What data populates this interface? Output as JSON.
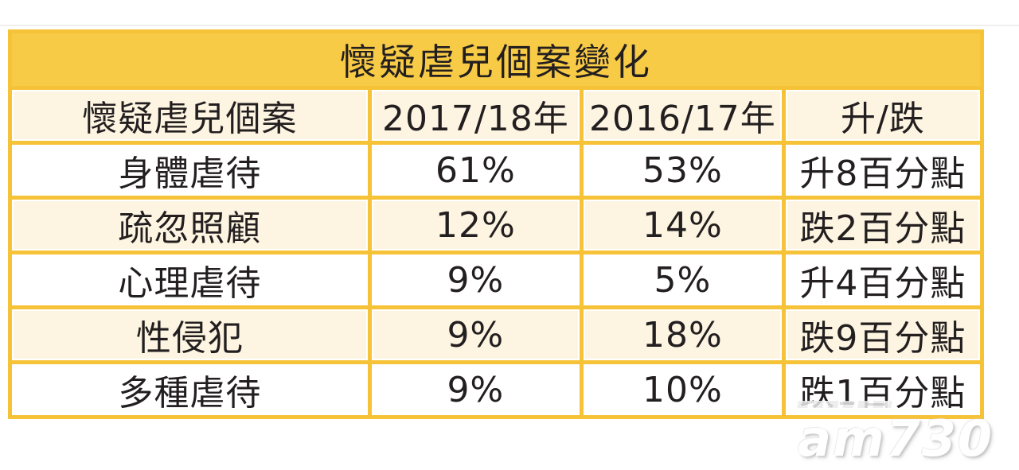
{
  "chart_data": {
    "type": "table",
    "title": "懷疑虐兒個案變化",
    "columns": [
      "懷疑虐兒個案",
      "2017/18年",
      "2016/17年",
      "升/跌"
    ],
    "rows": [
      [
        "身體虐待",
        "61%",
        "53%",
        "升8百分點"
      ],
      [
        "疏忽照顧",
        "12%",
        "14%",
        "跌2百分點"
      ],
      [
        "心理虐待",
        "9%",
        "5%",
        "升4百分點"
      ],
      [
        "性侵犯",
        "9%",
        "18%",
        "跌9百分點"
      ],
      [
        "多種虐待",
        "9%",
        "10%",
        "跌1百分點"
      ]
    ],
    "layout_hints": {
      "title_row_spans_all_columns": true,
      "alternating_row_shading": [
        "white",
        "cream"
      ],
      "grid_on": true
    }
  },
  "colors": {
    "title_bg": "#f8cb46",
    "band_bg": "#fdf5e1",
    "row_bg": "#ffffff",
    "grid": "#f6c238",
    "text": "#231f20"
  },
  "watermark": {
    "logo_text": "am730"
  }
}
